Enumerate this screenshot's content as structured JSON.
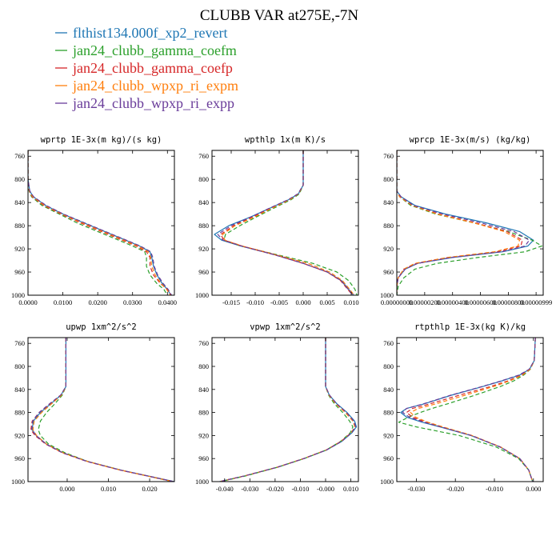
{
  "title": "CLUBB VAR at275E,-7N",
  "colors": {
    "flthist134.000f_xp2_revert": "#1f77b4",
    "jan24_clubb_gamma_coefm": "#2ca02c",
    "jan24_clubb_gamma_coefp": "#d62728",
    "jan24_clubb_wpxp_ri_expm": "#ff7f0e",
    "jan24_clubb_wpxp_ri_expp": "#6a3d9a"
  },
  "chart_data": [
    {
      "type": "line",
      "title": "wprtp  1E-3x(m kg)/(s kg)",
      "ylim": [
        1000,
        750
      ],
      "yticks": [
        "760",
        "800",
        "840",
        "880",
        "920",
        "960",
        "1000"
      ],
      "xlim": [
        0,
        0.042
      ],
      "xticks": [
        "0.0000",
        "0.0100",
        "0.0200",
        "0.0300",
        "0.0400"
      ],
      "xtick_values": [
        0,
        0.01,
        0.02,
        0.03,
        0.04
      ],
      "y": [
        750,
        800,
        820,
        830,
        845,
        860,
        875,
        890,
        905,
        915,
        925,
        935,
        950,
        965,
        980,
        990,
        1000
      ],
      "series": [
        {
          "name": "flthist134.000f_xp2_revert",
          "values": [
            0,
            0,
            0.0005,
            0.0015,
            0.005,
            0.01,
            0.016,
            0.022,
            0.028,
            0.032,
            0.035,
            0.0355,
            0.036,
            0.037,
            0.0385,
            0.04,
            0.041
          ]
        },
        {
          "name": "jan24_clubb_gamma_coefm",
          "values": [
            0,
            0,
            0.0003,
            0.001,
            0.004,
            0.009,
            0.014,
            0.02,
            0.026,
            0.03,
            0.0335,
            0.034,
            0.034,
            0.035,
            0.037,
            0.039,
            0.04
          ]
        },
        {
          "name": "jan24_clubb_gamma_coefp",
          "values": [
            0,
            0,
            0.0004,
            0.0012,
            0.0045,
            0.0095,
            0.015,
            0.021,
            0.027,
            0.031,
            0.034,
            0.035,
            0.035,
            0.036,
            0.038,
            0.04,
            0.041
          ]
        },
        {
          "name": "jan24_clubb_wpxp_ri_expm",
          "values": [
            0,
            0,
            0.0004,
            0.0013,
            0.0048,
            0.0098,
            0.0155,
            0.0215,
            0.0275,
            0.0315,
            0.0345,
            0.0352,
            0.0355,
            0.0365,
            0.0382,
            0.0398,
            0.0408
          ]
        },
        {
          "name": "jan24_clubb_wpxp_ri_expp",
          "values": [
            0,
            0,
            0.0005,
            0.0016,
            0.0052,
            0.0102,
            0.0162,
            0.0222,
            0.0282,
            0.0322,
            0.0352,
            0.0358,
            0.0362,
            0.0372,
            0.0388,
            0.0402,
            0.0412
          ]
        }
      ]
    },
    {
      "type": "line",
      "title": "wpthlp  1x(m K)/s",
      "ylim": [
        1000,
        750
      ],
      "yticks": [
        "760",
        "800",
        "840",
        "880",
        "920",
        "960",
        "1000"
      ],
      "xlim": [
        -0.019,
        0.0115
      ],
      "xticks": [
        "-0.015",
        "-0.010",
        "-0.005",
        "0.000",
        "0.005",
        "0.010"
      ],
      "xtick_values": [
        -0.015,
        -0.01,
        -0.005,
        0,
        0.005,
        0.01
      ],
      "y": [
        750,
        810,
        825,
        835,
        850,
        865,
        880,
        895,
        905,
        915,
        930,
        945,
        960,
        975,
        990,
        1000
      ],
      "series": [
        {
          "name": "flthist134.000f_xp2_revert",
          "values": [
            0,
            0,
            -0.001,
            -0.003,
            -0.007,
            -0.011,
            -0.0155,
            -0.0185,
            -0.017,
            -0.013,
            -0.006,
            0.0,
            0.005,
            0.008,
            0.0095,
            0.0105
          ]
        },
        {
          "name": "jan24_clubb_gamma_coefm",
          "values": [
            0,
            0,
            -0.0008,
            -0.0025,
            -0.0062,
            -0.0098,
            -0.0132,
            -0.0162,
            -0.0165,
            -0.013,
            -0.0055,
            0.002,
            0.007,
            0.0095,
            0.0108,
            0.0112
          ]
        },
        {
          "name": "jan24_clubb_gamma_coefp",
          "values": [
            0,
            0,
            -0.001,
            -0.003,
            -0.0068,
            -0.0105,
            -0.0145,
            -0.0172,
            -0.0165,
            -0.0128,
            -0.006,
            0.0,
            0.005,
            0.0078,
            0.0093,
            0.0103
          ]
        },
        {
          "name": "jan24_clubb_wpxp_ri_expm",
          "values": [
            0,
            0,
            -0.001,
            -0.0028,
            -0.0066,
            -0.0102,
            -0.0142,
            -0.0168,
            -0.0163,
            -0.0127,
            -0.0058,
            0.001,
            0.0055,
            0.0082,
            0.0097,
            0.0106
          ]
        },
        {
          "name": "jan24_clubb_wpxp_ri_expp",
          "values": [
            0,
            0,
            -0.0011,
            -0.0031,
            -0.0071,
            -0.0109,
            -0.015,
            -0.0178,
            -0.0167,
            -0.0129,
            -0.0061,
            0.0,
            0.005,
            0.0079,
            0.0094,
            0.0104
          ]
        }
      ]
    },
    {
      "type": "line",
      "title": "wprcp  1E-3x(m/s) (kg/kg)",
      "ylim": [
        1000,
        750
      ],
      "yticks": [
        "760",
        "800",
        "840",
        "880",
        "920",
        "960",
        "1000"
      ],
      "xlim": [
        0,
        1.05e-05
      ],
      "xticks": [
        "0.00000000",
        "0.00000200",
        "0.00000400",
        "0.00000600",
        "0.00000800",
        "0.00000999"
      ],
      "xtick_values": [
        0,
        2e-06,
        4e-06,
        6e-06,
        8e-06,
        9.99e-06
      ],
      "y": [
        750,
        820,
        830,
        845,
        860,
        875,
        890,
        905,
        915,
        925,
        935,
        945,
        955,
        970,
        985,
        1000
      ],
      "series": [
        {
          "name": "flthist134.000f_xp2_revert",
          "values": [
            0,
            0,
            3e-07,
            1.3e-06,
            3.5e-06,
            6.4e-06,
            8.8e-06,
            9.8e-06,
            9.4e-06,
            7.6e-06,
            4e-06,
            1.5e-06,
            6e-07,
            1e-07,
            0,
            0
          ]
        },
        {
          "name": "jan24_clubb_gamma_coefm",
          "values": [
            0,
            0,
            2e-07,
            1e-06,
            2.8e-06,
            5.5e-06,
            8e-06,
            9.7e-06,
            1.04e-05,
            9.2e-06,
            5.8e-06,
            2.9e-06,
            1.3e-06,
            5e-07,
            1e-07,
            0
          ]
        },
        {
          "name": "jan24_clubb_gamma_coefp",
          "values": [
            0,
            0,
            2e-07,
            1.1e-06,
            3e-06,
            5.6e-06,
            7.9e-06,
            9e-06,
            8.9e-06,
            7.2e-06,
            3.7e-06,
            1.4e-06,
            5e-07,
            1e-07,
            0,
            0
          ]
        },
        {
          "name": "jan24_clubb_wpxp_ri_expm",
          "values": [
            0,
            0,
            2e-07,
            1.1e-06,
            2.9e-06,
            5.5e-06,
            7.7e-06,
            8.8e-06,
            8.7e-06,
            7e-06,
            3.6e-06,
            1.3e-06,
            5e-07,
            1e-07,
            0,
            0
          ]
        },
        {
          "name": "jan24_clubb_wpxp_ri_expp",
          "values": [
            0,
            0,
            3e-07,
            1.2e-06,
            3.3e-06,
            6e-06,
            8.4e-06,
            9.5e-06,
            9.2e-06,
            7.5e-06,
            3.9e-06,
            1.5e-06,
            6e-07,
            1e-07,
            0,
            0
          ]
        }
      ]
    },
    {
      "type": "line",
      "title": "upwp  1xm^2/s^2",
      "ylim": [
        1000,
        750
      ],
      "yticks": [
        "760",
        "800",
        "840",
        "880",
        "920",
        "960",
        "1000"
      ],
      "xlim": [
        -0.0095,
        0.026
      ],
      "xticks": [
        "0.000",
        "0.010",
        "0.020"
      ],
      "xtick_values": [
        0,
        0.01,
        0.02
      ],
      "y": [
        750,
        835,
        850,
        865,
        880,
        895,
        910,
        920,
        935,
        950,
        965,
        980,
        1000
      ],
      "series": [
        {
          "name": "flthist134.000f_xp2_revert",
          "values": [
            -0.0003,
            -0.0003,
            -0.0015,
            -0.004,
            -0.0065,
            -0.0082,
            -0.0085,
            -0.0075,
            -0.005,
            -0.001,
            0.005,
            0.013,
            0.026
          ]
        },
        {
          "name": "jan24_clubb_gamma_coefm",
          "values": [
            -0.0003,
            -0.0003,
            -0.0012,
            -0.003,
            -0.005,
            -0.0065,
            -0.007,
            -0.0065,
            -0.0045,
            -0.0005,
            0.005,
            0.013,
            0.0255
          ]
        },
        {
          "name": "jan24_clubb_gamma_coefp",
          "values": [
            -0.0003,
            -0.0003,
            -0.0015,
            -0.0042,
            -0.0068,
            -0.0085,
            -0.0088,
            -0.0078,
            -0.0052,
            -0.0012,
            0.0048,
            0.0128,
            0.0258
          ]
        },
        {
          "name": "jan24_clubb_wpxp_ri_expm",
          "values": [
            -0.0003,
            -0.0003,
            -0.0014,
            -0.0038,
            -0.0062,
            -0.008,
            -0.0083,
            -0.0074,
            -0.005,
            -0.001,
            0.0049,
            0.0129,
            0.0257
          ]
        },
        {
          "name": "jan24_clubb_wpxp_ri_expp",
          "values": [
            -0.0003,
            -0.0003,
            -0.0016,
            -0.0043,
            -0.0068,
            -0.0084,
            -0.0086,
            -0.0076,
            -0.0051,
            -0.0011,
            0.0048,
            0.0129,
            0.0258
          ]
        }
      ]
    },
    {
      "type": "line",
      "title": "vpwp  1xm^2/s^2",
      "ylim": [
        1000,
        750
      ],
      "yticks": [
        "760",
        "800",
        "840",
        "880",
        "920",
        "960",
        "1000"
      ],
      "xlim": [
        -0.045,
        0.013
      ],
      "xticks": [
        "-0.040",
        "-0.030",
        "-0.020",
        "-0.010",
        "-0.000",
        "0.010"
      ],
      "xtick_values": [
        -0.04,
        -0.03,
        -0.02,
        -0.01,
        0,
        0.01
      ],
      "y": [
        750,
        835,
        850,
        865,
        880,
        895,
        905,
        915,
        930,
        945,
        960,
        975,
        990,
        1000
      ],
      "series": [
        {
          "name": "flthist134.000f_xp2_revert",
          "values": [
            0,
            0,
            0.0015,
            0.0045,
            0.0085,
            0.0115,
            0.0122,
            0.0105,
            0.0065,
            0.0005,
            -0.0085,
            -0.019,
            -0.032,
            -0.042
          ]
        },
        {
          "name": "jan24_clubb_gamma_coefm",
          "values": [
            0,
            0,
            0.0012,
            0.0035,
            0.0068,
            0.0095,
            0.0108,
            0.0098,
            0.006,
            0.0003,
            -0.0085,
            -0.019,
            -0.0315,
            -0.0415
          ]
        },
        {
          "name": "jan24_clubb_gamma_coefp",
          "values": [
            0,
            0,
            0.0015,
            0.0042,
            0.008,
            0.011,
            0.0118,
            0.0102,
            0.0062,
            0.0003,
            -0.0087,
            -0.0192,
            -0.032,
            -0.042
          ]
        },
        {
          "name": "jan24_clubb_wpxp_ri_expm",
          "values": [
            0,
            0,
            0.0014,
            0.004,
            0.0078,
            0.0108,
            0.0116,
            0.0101,
            0.0062,
            0.0003,
            -0.0086,
            -0.0191,
            -0.032,
            -0.042
          ]
        },
        {
          "name": "jan24_clubb_wpxp_ri_expp",
          "values": [
            0,
            0,
            0.0016,
            0.0044,
            0.0083,
            0.0112,
            0.0119,
            0.0103,
            0.0064,
            0.0004,
            -0.0086,
            -0.0191,
            -0.032,
            -0.042
          ]
        }
      ]
    },
    {
      "type": "line",
      "title": "rtpthlp  1E-3x(kg K)/kg",
      "ylim": [
        1000,
        750
      ],
      "yticks": [
        "760",
        "800",
        "840",
        "880",
        "920",
        "960",
        "1000"
      ],
      "xlim": [
        -0.035,
        0.0025
      ],
      "xticks": [
        "-0.030",
        "-0.020",
        "-0.010",
        "0.000"
      ],
      "xtick_values": [
        -0.03,
        -0.02,
        -0.01,
        0
      ],
      "y": [
        750,
        790,
        805,
        815,
        825,
        835,
        850,
        865,
        873,
        880,
        888,
        897,
        905,
        920,
        940,
        960,
        980,
        1000
      ],
      "series": [
        {
          "name": "flthist134.000f_xp2_revert",
          "values": [
            0.0005,
            0.0002,
            -0.001,
            -0.0035,
            -0.008,
            -0.013,
            -0.021,
            -0.028,
            -0.0325,
            -0.034,
            -0.0325,
            -0.0285,
            -0.024,
            -0.016,
            -0.0085,
            -0.0035,
            -0.0012,
            -0.0002
          ]
        },
        {
          "name": "jan24_clubb_gamma_coefm",
          "values": [
            0.0005,
            0.0002,
            -0.0008,
            -0.0025,
            -0.005,
            -0.0085,
            -0.015,
            -0.022,
            -0.026,
            -0.029,
            -0.032,
            -0.0345,
            -0.03,
            -0.019,
            -0.0095,
            -0.0038,
            -0.0012,
            -0.0002
          ]
        },
        {
          "name": "jan24_clubb_gamma_coefp",
          "values": [
            0.0005,
            0.0002,
            -0.0009,
            -0.003,
            -0.0065,
            -0.011,
            -0.019,
            -0.0265,
            -0.031,
            -0.0325,
            -0.031,
            -0.0275,
            -0.0235,
            -0.0158,
            -0.0084,
            -0.0035,
            -0.0012,
            -0.0002
          ]
        },
        {
          "name": "jan24_clubb_wpxp_ri_expm",
          "values": [
            0.0005,
            0.0002,
            -0.0009,
            -0.0028,
            -0.006,
            -0.0102,
            -0.0175,
            -0.025,
            -0.0295,
            -0.0315,
            -0.0302,
            -0.027,
            -0.0232,
            -0.0157,
            -0.0084,
            -0.0035,
            -0.0012,
            -0.0002
          ]
        },
        {
          "name": "jan24_clubb_wpxp_ri_expp",
          "values": [
            0.0005,
            0.0002,
            -0.0011,
            -0.0037,
            -0.0082,
            -0.0132,
            -0.0212,
            -0.0282,
            -0.0325,
            -0.0335,
            -0.0318,
            -0.028,
            -0.0238,
            -0.0159,
            -0.0085,
            -0.0035,
            -0.0012,
            -0.0002
          ]
        }
      ]
    }
  ]
}
